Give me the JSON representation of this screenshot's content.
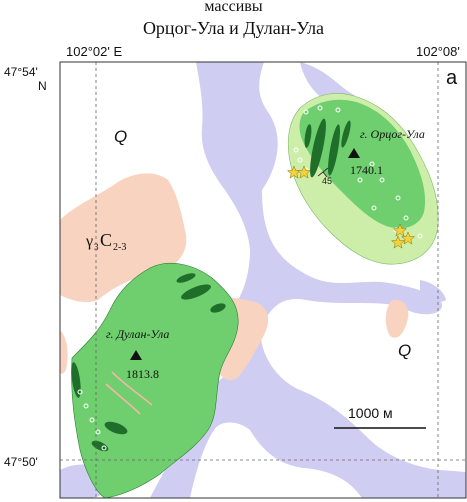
{
  "title": {
    "line1": "массивы",
    "line2": "Орцог-Ула и Дулан-Ула"
  },
  "coords": {
    "top_left_lon": "102°02' E",
    "top_right_lon": "102°08'",
    "lat_top": "47°54'",
    "lat_top_suffix": "N",
    "lat_bottom": "47°50'"
  },
  "panel_letter": "а",
  "labels": {
    "quaternary_1": "Q",
    "quaternary_2": "Q",
    "granite_prefix": "γ",
    "granite_sub": "3",
    "granite_age": "C",
    "granite_age_sub": "2-3",
    "peak1_name": "г. Орцог-Ула",
    "peak1_elev": "1740.1",
    "peak2_name": "г. Дулан-Ула",
    "peak2_elev": "1813.8",
    "dip": "45"
  },
  "scale_bar": {
    "label": "1000 м"
  },
  "colors": {
    "massif_green": "#6fcf6f",
    "light_green": "#cdeea8",
    "dark_green": "#1f6f2a",
    "granite_pink": "#f7d3c0",
    "alluvium_lavender": "#cfcdf2",
    "frame": "#333333"
  }
}
